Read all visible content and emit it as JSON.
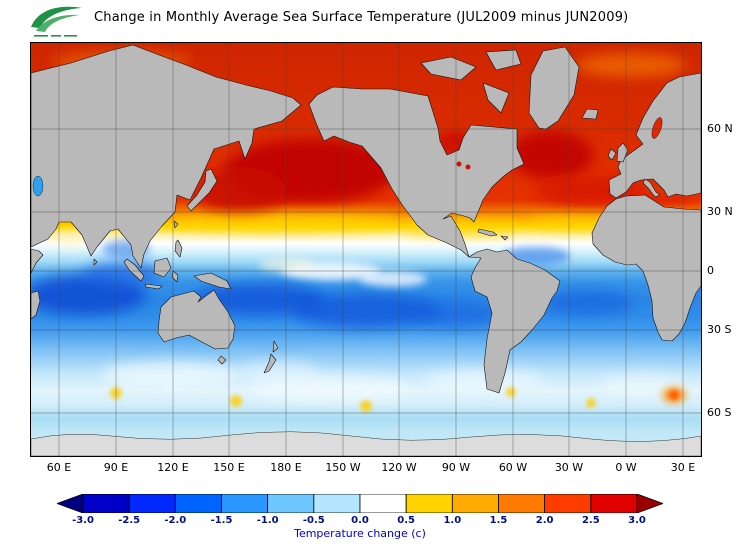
{
  "header": {
    "title": "Change in Monthly Average Sea Surface Temperature (JUL2009 minus JUN2009)",
    "logo": "green-wave-agency-logo"
  },
  "chart_data": {
    "type": "heatmap",
    "title": "Change in Monthly Average Sea Surface Temperature (JUL2009 minus JUN2009)",
    "projection": "Pacific-centered world map (left edge ~45E), Mercator-like, approx 77N to 70S",
    "x_tick_labels": [
      "60 E",
      "90 E",
      "120 E",
      "150 E",
      "180 E",
      "150 W",
      "120 W",
      "90 W",
      "60 W",
      "30 W",
      "0 W",
      "30 E"
    ],
    "y_tick_labels": [
      "60 N",
      "30 N",
      "0",
      "30 S",
      "60 S"
    ],
    "grid": "30-degree lat/lon graticule, thin gray lines",
    "land_color": "#b9b9b9",
    "no_data": "south of ~65S shown as light gray (ice / no data)",
    "colorbar": {
      "label": "Temperature change  (c)",
      "tick_labels": [
        "-3.0",
        "-2.5",
        "-2.0",
        "-1.5",
        "-1.0",
        "-0.5",
        "0.0",
        "0.5",
        "1.0",
        "1.5",
        "2.0",
        "2.5",
        "3.0"
      ],
      "colors": [
        "#000082",
        "#0000c8",
        "#0028ff",
        "#0064ff",
        "#2996ff",
        "#6ec8ff",
        "#b4e6ff",
        "#ffffff",
        "#ffd200",
        "#ffaa00",
        "#ff7800",
        "#ff3c00",
        "#e10000",
        "#9b0000"
      ],
      "arrow_ends": true
    },
    "zonal_mean_change_estimate": {
      "lat_bands": [
        "70N-60N",
        "60N-45N",
        "45N-30N",
        "30N-25N",
        "25N-18N",
        "18N-8N",
        "8N-0",
        "0-15S",
        "15S-30S",
        "30S-42S",
        "42S-55S",
        "55S-65S"
      ],
      "values_c": [
        2.5,
        3.0,
        2.8,
        1.5,
        0.5,
        -0.5,
        -1.0,
        -1.8,
        -1.5,
        -0.7,
        -0.2,
        -0.7
      ]
    },
    "features": [
      "North Pacific 30-55N: +2.5 to more than +3 (deep red maximum)",
      "North Atlantic 35-55N: +2.5 to +3 (deep red)",
      "Arctic seas: +1.5 to +3 (red with orange patches)",
      "Mediterranean and Baltic seas: +2 to +3",
      "Transition band near 25-30N: +0.5 to +1.5 (yellow/orange)",
      "Tropical Indian Ocean 5-15S: -2 to -3 (deepest blue)",
      "Central South Pacific 10-25S: -1.5 to -2.5",
      "Equatorial central Pacific: near 0 (white patches)",
      "Southern Ocean 40-55S: near 0 (white/pale) with isolated +1 to +1.5 warm spots",
      "South of ~65S: gray, no data"
    ]
  }
}
